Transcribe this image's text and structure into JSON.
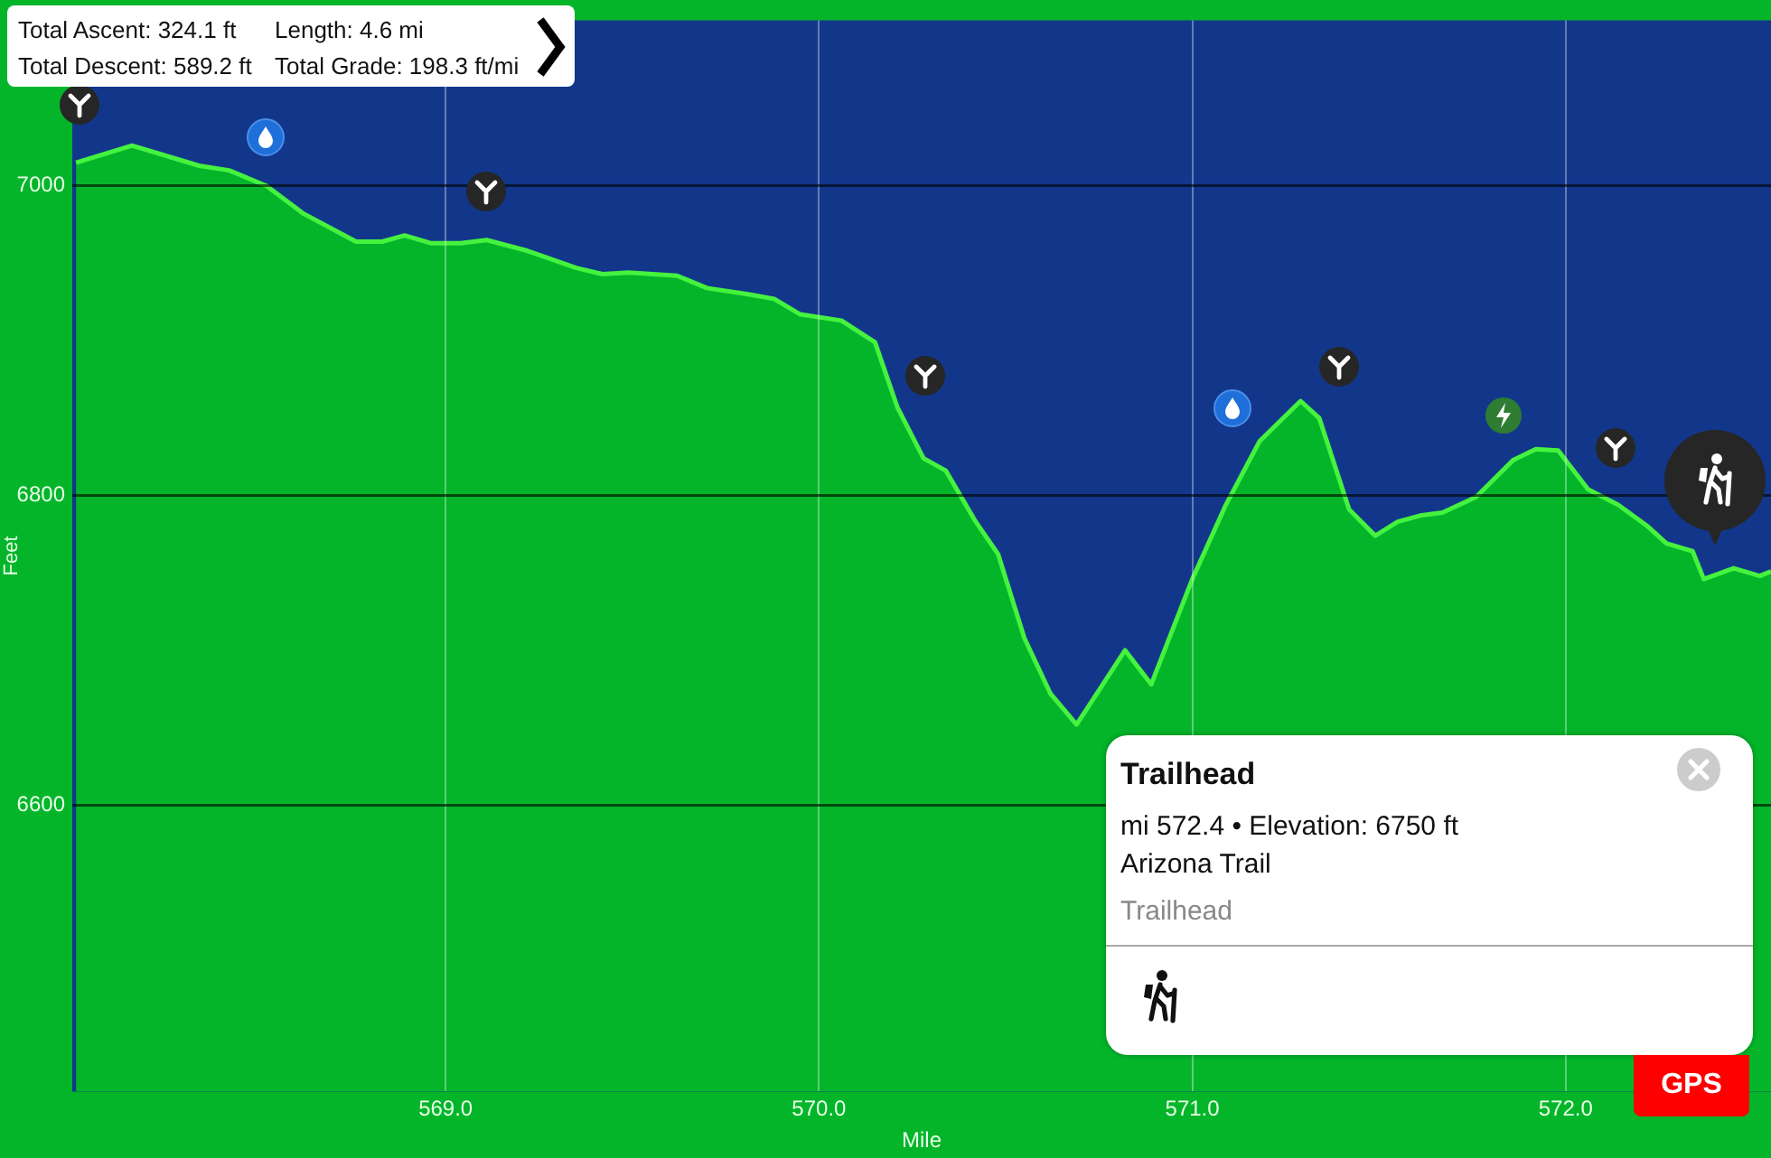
{
  "chart_data": {
    "type": "area",
    "xlabel": "Mile",
    "ylabel": "Feet",
    "x": [
      568.01,
      568.16,
      568.34,
      568.42,
      568.52,
      568.62,
      568.76,
      568.83,
      568.89,
      568.96,
      569.04,
      569.11,
      569.22,
      569.35,
      569.42,
      569.49,
      569.62,
      569.7,
      569.81,
      569.88,
      569.95,
      570.06,
      570.15,
      570.21,
      570.28,
      570.34,
      570.42,
      570.48,
      570.55,
      570.62,
      570.69,
      570.82,
      570.89,
      571.0,
      571.09,
      571.18,
      571.29,
      571.34,
      571.42,
      571.49,
      571.55,
      571.61,
      571.67,
      571.76,
      571.86,
      571.92,
      571.98,
      572.06,
      572.14,
      572.22,
      572.27,
      572.34,
      572.37,
      572.45,
      572.52,
      572.55
    ],
    "series": [
      {
        "color": "#04b52a",
        "values": [
          7015,
          7026,
          7013,
          7010,
          7000,
          6982,
          6964,
          6964,
          6968,
          6963,
          6963,
          6965,
          6958,
          6947,
          6943,
          6944,
          6942,
          6934,
          6930,
          6927,
          6917,
          6913,
          6899,
          6857,
          6824,
          6816,
          6783,
          6762,
          6708,
          6672,
          6652,
          6700,
          6678,
          6746,
          6794,
          6835,
          6861,
          6850,
          6791,
          6774,
          6783,
          6787,
          6789,
          6799,
          6823,
          6830,
          6829,
          6804,
          6794,
          6780,
          6769,
          6764,
          6746,
          6753,
          6748,
          6751
        ]
      }
    ],
    "xlim": [
      568.0,
      572.55
    ],
    "ylim": [
      6415,
      7107
    ],
    "xticks": [
      {
        "value": 569,
        "label": "569.0"
      },
      {
        "value": 570,
        "label": "570.0"
      },
      {
        "value": 571,
        "label": "571.0"
      },
      {
        "value": 572,
        "label": "572.0"
      }
    ],
    "yticks": [
      6600,
      6800,
      7000
    ],
    "grid": true,
    "legend": false,
    "marker": "none",
    "annotations": [
      "Total Ascent: 324.1 ft",
      "Length: 4.6 mi",
      "Total Descent: 589.2 ft",
      "Total Grade: 198.3 ft/mi",
      "Trailhead",
      "mi 572.4 • Elevation: 6750 ft",
      "Arizona Trail",
      "Trailhead",
      "GPS"
    ]
  }
}
